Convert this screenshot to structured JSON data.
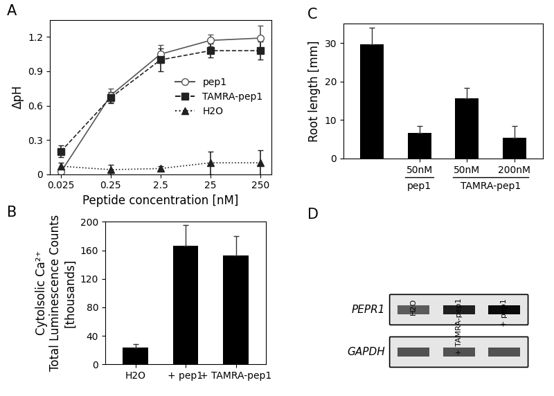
{
  "chart_data": [
    {
      "type": "line",
      "title": "A",
      "x_label": "Peptide concentration [nM]",
      "y_label": "ΔpH",
      "x": [
        0.025,
        0.25,
        2.5,
        25,
        250
      ],
      "log": "x",
      "xlim": [
        0.015,
        420
      ],
      "xticks": [
        0.025,
        0.25,
        2.5,
        25,
        250
      ],
      "ylim": [
        0,
        1.35
      ],
      "yticks": [
        0,
        0.3,
        0.6,
        0.9,
        1.2
      ],
      "legend": "center right",
      "series": [
        {
          "name": "pep1",
          "color": "#555555",
          "marker": "open_circle",
          "line_style": "solid",
          "values": [
            0.02,
            0.69,
            1.05,
            1.17,
            1.19
          ],
          "error": [
            0.02,
            0.06,
            0.08,
            0.05,
            0.11
          ]
        },
        {
          "name": "TAMRA-pep1",
          "color": "#222222",
          "marker": "square",
          "line_style": "dashed",
          "values": [
            0.2,
            0.67,
            1.0,
            1.08,
            1.08
          ],
          "error": [
            0.05,
            0.05,
            0.1,
            0.06,
            0.08
          ]
        },
        {
          "name": "H2O",
          "color": "#222222",
          "marker": "triangle",
          "line_style": "dotted",
          "values": [
            0.07,
            0.04,
            0.05,
            0.1,
            0.1
          ],
          "error": [
            0.03,
            0.04,
            0.02,
            0.1,
            0.11
          ]
        }
      ]
    },
    {
      "type": "bar",
      "title": "B",
      "y_label": "Cytolsolic Ca²⁺\nTotal Luminescence Counts\n[thousands]",
      "categories": [
        "H2O",
        "+ pep1",
        "+ TAMRA-pep1"
      ],
      "values": [
        24,
        166,
        153
      ],
      "error": [
        4,
        29,
        27
      ],
      "color": "#000000",
      "ylim": [
        0,
        200
      ],
      "yticks": [
        0,
        40,
        80,
        120,
        160,
        200
      ]
    },
    {
      "type": "bar",
      "title": "C",
      "y_label": "Root length [mm]",
      "categories": [
        null,
        "50nM",
        "50nM",
        "200nM"
      ],
      "groups": [
        {
          "name": "pep1",
          "from": 1,
          "to": 1
        },
        {
          "name": "TAMRA-pep1",
          "from": 2,
          "to": 3
        }
      ],
      "values": [
        29.7,
        6.7,
        15.7,
        5.4
      ],
      "error": [
        4.2,
        1.8,
        2.7,
        3.0
      ],
      "color": "#000000",
      "ylim": [
        0,
        35
      ],
      "yticks": [
        0,
        10,
        20,
        30
      ]
    }
  ],
  "gel": {
    "title": "D",
    "lanes": [
      "H2O",
      "+ TAMRA-pep1",
      "+ pep1"
    ],
    "rows": [
      {
        "name": "PEPR1",
        "intensity": [
          0.55,
          0.85,
          0.95
        ]
      },
      {
        "name": "GAPDH",
        "intensity": [
          0.6,
          0.6,
          0.6
        ]
      }
    ]
  }
}
